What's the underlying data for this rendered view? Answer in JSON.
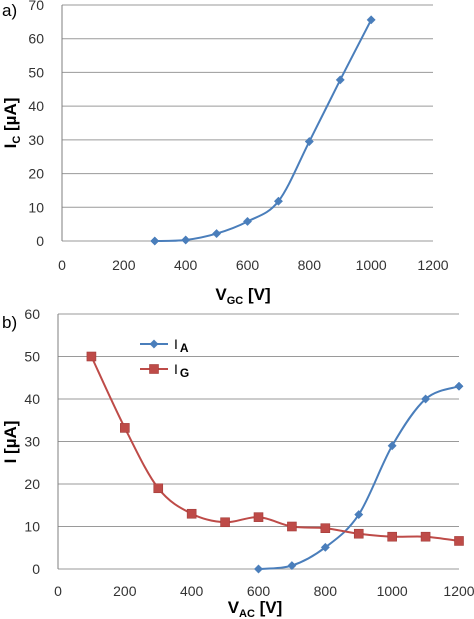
{
  "chart_data": [
    {
      "panel_label": "a)",
      "type": "line",
      "xlim": [
        0,
        1200
      ],
      "ylim": [
        0,
        70
      ],
      "xticks": [
        0,
        200,
        400,
        600,
        800,
        1000,
        1200
      ],
      "yticks": [
        0,
        10,
        20,
        30,
        40,
        50,
        60,
        70
      ],
      "grid": "horizontal",
      "xlabel": {
        "main": "V",
        "sub": "GC",
        "rest": " [V]"
      },
      "ylabel": {
        "main": "I",
        "sub": "C",
        "rest": " [µA]"
      },
      "series": [
        {
          "color": "#4a7ebb",
          "marker": "diamond",
          "x": [
            300,
            400,
            500,
            600,
            700,
            800,
            900,
            1000
          ],
          "y": [
            0,
            0.3,
            2.2,
            5.8,
            11.8,
            29.5,
            47.8,
            65.6
          ]
        }
      ]
    },
    {
      "panel_label": "b)",
      "type": "line",
      "xlim": [
        0,
        1200
      ],
      "ylim": [
        0,
        60
      ],
      "xticks": [
        0,
        200,
        400,
        600,
        800,
        1000,
        1200
      ],
      "yticks": [
        0,
        10,
        20,
        30,
        40,
        50,
        60
      ],
      "grid": "horizontal",
      "xlabel": {
        "main": "V",
        "sub": "AC",
        "rest": " [V]"
      },
      "ylabel": {
        "main": "I",
        "sub": "",
        "rest": " [µA]"
      },
      "legend_position": "upper-left",
      "series": [
        {
          "legend_main": "I",
          "legend_sub": "A",
          "color": "#4a7ebb",
          "marker": "diamond",
          "x": [
            600,
            700,
            800,
            900,
            1000,
            1100,
            1200
          ],
          "y": [
            0,
            0.8,
            5.1,
            12.8,
            29,
            40,
            43
          ]
        },
        {
          "legend_main": "I",
          "legend_sub": "G",
          "color": "#be4b48",
          "marker": "square",
          "x": [
            100,
            200,
            300,
            400,
            500,
            600,
            700,
            800,
            900,
            1000,
            1100,
            1200
          ],
          "y": [
            50,
            33.2,
            19,
            13,
            11,
            12.2,
            10,
            9.6,
            8.3,
            7.6,
            7.6,
            6.6
          ]
        }
      ]
    }
  ]
}
